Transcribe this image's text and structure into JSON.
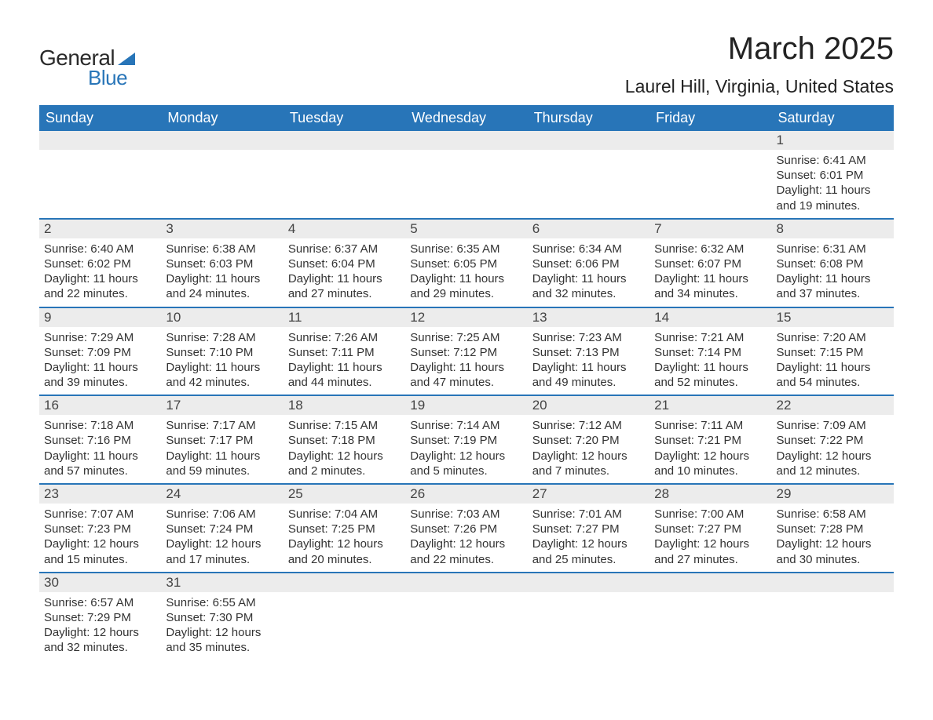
{
  "brand": {
    "name1": "General",
    "name2": "Blue",
    "accent": "#2875b8"
  },
  "title": "March 2025",
  "location": "Laurel Hill, Virginia, United States",
  "colors": {
    "header_bg": "#2875b8",
    "header_text": "#ffffff",
    "daynum_bg": "#ececec",
    "row_border": "#2875b8",
    "body_text": "#333333",
    "page_bg": "#ffffff"
  },
  "typography": {
    "title_size_pt": 30,
    "location_size_pt": 17,
    "header_size_pt": 14,
    "cell_size_pt": 11
  },
  "layout": {
    "columns": 7,
    "rows": 6,
    "week_start": "Sunday"
  },
  "weekdays": [
    "Sunday",
    "Monday",
    "Tuesday",
    "Wednesday",
    "Thursday",
    "Friday",
    "Saturday"
  ],
  "labels": {
    "sunrise": "Sunrise:",
    "sunset": "Sunset:",
    "daylight": "Daylight:"
  },
  "weeks": [
    [
      null,
      null,
      null,
      null,
      null,
      null,
      {
        "n": "1",
        "sunrise": "6:41 AM",
        "sunset": "6:01 PM",
        "daylight": "11 hours and 19 minutes."
      }
    ],
    [
      {
        "n": "2",
        "sunrise": "6:40 AM",
        "sunset": "6:02 PM",
        "daylight": "11 hours and 22 minutes."
      },
      {
        "n": "3",
        "sunrise": "6:38 AM",
        "sunset": "6:03 PM",
        "daylight": "11 hours and 24 minutes."
      },
      {
        "n": "4",
        "sunrise": "6:37 AM",
        "sunset": "6:04 PM",
        "daylight": "11 hours and 27 minutes."
      },
      {
        "n": "5",
        "sunrise": "6:35 AM",
        "sunset": "6:05 PM",
        "daylight": "11 hours and 29 minutes."
      },
      {
        "n": "6",
        "sunrise": "6:34 AM",
        "sunset": "6:06 PM",
        "daylight": "11 hours and 32 minutes."
      },
      {
        "n": "7",
        "sunrise": "6:32 AM",
        "sunset": "6:07 PM",
        "daylight": "11 hours and 34 minutes."
      },
      {
        "n": "8",
        "sunrise": "6:31 AM",
        "sunset": "6:08 PM",
        "daylight": "11 hours and 37 minutes."
      }
    ],
    [
      {
        "n": "9",
        "sunrise": "7:29 AM",
        "sunset": "7:09 PM",
        "daylight": "11 hours and 39 minutes."
      },
      {
        "n": "10",
        "sunrise": "7:28 AM",
        "sunset": "7:10 PM",
        "daylight": "11 hours and 42 minutes."
      },
      {
        "n": "11",
        "sunrise": "7:26 AM",
        "sunset": "7:11 PM",
        "daylight": "11 hours and 44 minutes."
      },
      {
        "n": "12",
        "sunrise": "7:25 AM",
        "sunset": "7:12 PM",
        "daylight": "11 hours and 47 minutes."
      },
      {
        "n": "13",
        "sunrise": "7:23 AM",
        "sunset": "7:13 PM",
        "daylight": "11 hours and 49 minutes."
      },
      {
        "n": "14",
        "sunrise": "7:21 AM",
        "sunset": "7:14 PM",
        "daylight": "11 hours and 52 minutes."
      },
      {
        "n": "15",
        "sunrise": "7:20 AM",
        "sunset": "7:15 PM",
        "daylight": "11 hours and 54 minutes."
      }
    ],
    [
      {
        "n": "16",
        "sunrise": "7:18 AM",
        "sunset": "7:16 PM",
        "daylight": "11 hours and 57 minutes."
      },
      {
        "n": "17",
        "sunrise": "7:17 AM",
        "sunset": "7:17 PM",
        "daylight": "11 hours and 59 minutes."
      },
      {
        "n": "18",
        "sunrise": "7:15 AM",
        "sunset": "7:18 PM",
        "daylight": "12 hours and 2 minutes."
      },
      {
        "n": "19",
        "sunrise": "7:14 AM",
        "sunset": "7:19 PM",
        "daylight": "12 hours and 5 minutes."
      },
      {
        "n": "20",
        "sunrise": "7:12 AM",
        "sunset": "7:20 PM",
        "daylight": "12 hours and 7 minutes."
      },
      {
        "n": "21",
        "sunrise": "7:11 AM",
        "sunset": "7:21 PM",
        "daylight": "12 hours and 10 minutes."
      },
      {
        "n": "22",
        "sunrise": "7:09 AM",
        "sunset": "7:22 PM",
        "daylight": "12 hours and 12 minutes."
      }
    ],
    [
      {
        "n": "23",
        "sunrise": "7:07 AM",
        "sunset": "7:23 PM",
        "daylight": "12 hours and 15 minutes."
      },
      {
        "n": "24",
        "sunrise": "7:06 AM",
        "sunset": "7:24 PM",
        "daylight": "12 hours and 17 minutes."
      },
      {
        "n": "25",
        "sunrise": "7:04 AM",
        "sunset": "7:25 PM",
        "daylight": "12 hours and 20 minutes."
      },
      {
        "n": "26",
        "sunrise": "7:03 AM",
        "sunset": "7:26 PM",
        "daylight": "12 hours and 22 minutes."
      },
      {
        "n": "27",
        "sunrise": "7:01 AM",
        "sunset": "7:27 PM",
        "daylight": "12 hours and 25 minutes."
      },
      {
        "n": "28",
        "sunrise": "7:00 AM",
        "sunset": "7:27 PM",
        "daylight": "12 hours and 27 minutes."
      },
      {
        "n": "29",
        "sunrise": "6:58 AM",
        "sunset": "7:28 PM",
        "daylight": "12 hours and 30 minutes."
      }
    ],
    [
      {
        "n": "30",
        "sunrise": "6:57 AM",
        "sunset": "7:29 PM",
        "daylight": "12 hours and 32 minutes."
      },
      {
        "n": "31",
        "sunrise": "6:55 AM",
        "sunset": "7:30 PM",
        "daylight": "12 hours and 35 minutes."
      },
      null,
      null,
      null,
      null,
      null
    ]
  ]
}
